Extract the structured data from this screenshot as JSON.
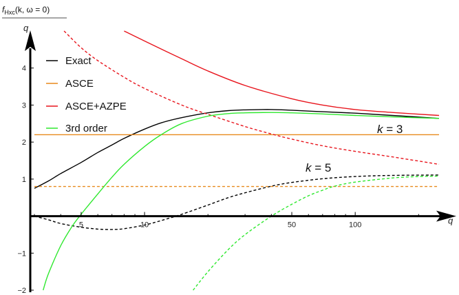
{
  "chart_data": {
    "type": "line",
    "title": "f_Hxc(k, ω = 0)",
    "title_parts": {
      "f": "f",
      "sub": "Hxc",
      "args": "(k,  ω = 0)"
    },
    "x_axis_label": "q",
    "y_axis_label": "q",
    "x_scale": "log",
    "xlim": [
      3,
      250
    ],
    "ylim": [
      -2,
      5
    ],
    "x_ticks": [
      5,
      10,
      50,
      100
    ],
    "y_ticks": [
      -2,
      -1,
      1,
      2,
      3,
      4
    ],
    "legend": {
      "placement": "top-left",
      "entries": [
        {
          "label": "Exact",
          "color": "#000000"
        },
        {
          "label": "ASCE",
          "color": "#e8891c"
        },
        {
          "label": "ASCE+AZPE",
          "color": "#e8141c"
        },
        {
          "label": "3rd order",
          "color": "#2ee82e"
        }
      ]
    },
    "annotations": [
      {
        "text": "k = 3"
      },
      {
        "text": "k = 5"
      }
    ],
    "series": [
      {
        "name": "Exact",
        "k": "k = 3",
        "color": "#000000",
        "dash": false,
        "x": [
          3,
          3.5,
          4,
          5,
          6,
          7,
          8,
          10,
          12,
          15,
          20,
          25,
          30,
          40,
          50,
          70,
          100,
          150,
          250
        ],
        "y": [
          0.75,
          0.95,
          1.15,
          1.45,
          1.72,
          1.92,
          2.1,
          2.35,
          2.52,
          2.66,
          2.79,
          2.85,
          2.87,
          2.88,
          2.86,
          2.82,
          2.78,
          2.72,
          2.64
        ]
      },
      {
        "name": "Exact",
        "k": "k = 5",
        "color": "#000000",
        "dash": true,
        "x": [
          3,
          3.5,
          4,
          5,
          6,
          7,
          8,
          10,
          12,
          15,
          20,
          25,
          30,
          40,
          50,
          70,
          100,
          150,
          250
        ],
        "y": [
          0.0,
          -0.1,
          -0.2,
          -0.3,
          -0.35,
          -0.36,
          -0.34,
          -0.24,
          -0.12,
          0.05,
          0.3,
          0.5,
          0.63,
          0.81,
          0.91,
          1.01,
          1.07,
          1.1,
          1.11
        ]
      },
      {
        "name": "ASCE",
        "k": "k = 3",
        "color": "#e8891c",
        "dash": false,
        "x": [
          3,
          250
        ],
        "y": [
          2.2,
          2.2
        ]
      },
      {
        "name": "ASCE",
        "k": "k = 5",
        "color": "#e8891c",
        "dash": true,
        "x": [
          3,
          250
        ],
        "y": [
          0.8,
          0.8
        ]
      },
      {
        "name": "ASCE+AZPE",
        "k": "k = 3",
        "color": "#e8141c",
        "dash": false,
        "x": [
          8,
          10,
          15,
          20,
          30,
          50,
          70,
          100,
          150,
          250
        ],
        "y": [
          5.0,
          4.73,
          4.25,
          3.92,
          3.53,
          3.17,
          3.0,
          2.88,
          2.8,
          2.72
        ]
      },
      {
        "name": "ASCE+AZPE",
        "k": "k = 5",
        "color": "#e8141c",
        "dash": true,
        "x": [
          4.15,
          5,
          6,
          8,
          10,
          15,
          20,
          30,
          40,
          50,
          70,
          100,
          150,
          250
        ],
        "y": [
          5.0,
          4.55,
          4.2,
          3.75,
          3.45,
          3.0,
          2.75,
          2.42,
          2.22,
          2.08,
          1.9,
          1.75,
          1.6,
          1.4
        ]
      },
      {
        "name": "3rd order",
        "k": "k = 3",
        "color": "#2ee82e",
        "dash": false,
        "x": [
          3.3,
          3.5,
          4,
          4.5,
          5,
          6,
          7,
          8,
          10,
          12,
          15,
          20,
          25,
          30,
          40,
          50,
          70,
          100,
          150,
          250
        ],
        "y": [
          -2.0,
          -1.55,
          -0.8,
          -0.3,
          0.05,
          0.6,
          1.05,
          1.4,
          1.88,
          2.2,
          2.5,
          2.7,
          2.77,
          2.79,
          2.8,
          2.79,
          2.76,
          2.72,
          2.68,
          2.64
        ]
      },
      {
        "name": "3rd order",
        "k": "k = 5",
        "color": "#2ee82e",
        "dash": true,
        "x": [
          17,
          20,
          25,
          30,
          40,
          50,
          60,
          70,
          80,
          100,
          150,
          200,
          250
        ],
        "y": [
          -2.0,
          -1.5,
          -0.9,
          -0.5,
          0.0,
          0.32,
          0.55,
          0.7,
          0.81,
          0.92,
          1.03,
          1.07,
          1.08
        ]
      }
    ]
  }
}
